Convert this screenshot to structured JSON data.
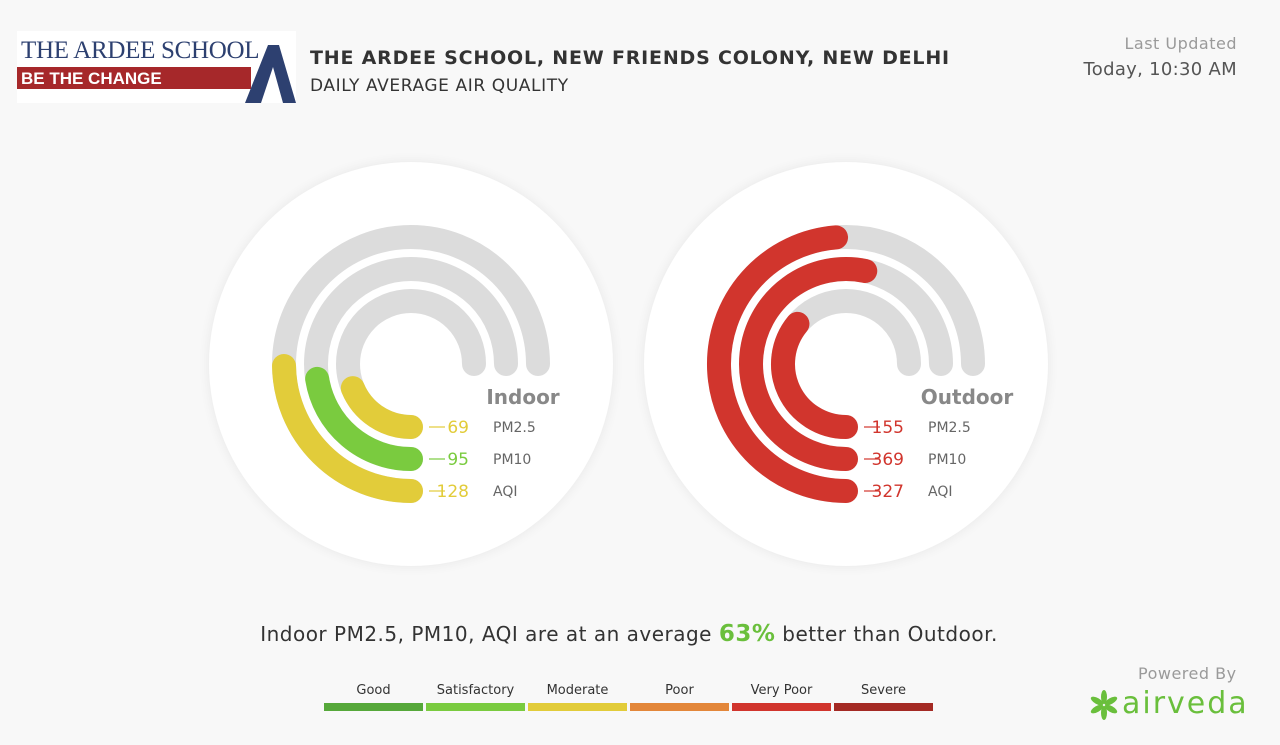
{
  "header": {
    "logo": {
      "name": "THE ARDEE SCHOOL",
      "tagline": "BE THE CHANGE",
      "colors": {
        "navy": "#2d4070",
        "red": "#a6282a"
      }
    },
    "title": "THE ARDEE SCHOOL, NEW FRIENDS COLONY, NEW DELHI",
    "subtitle": "DAILY AVERAGE AIR QUALITY",
    "last_updated_label": "Last Updated",
    "last_updated_value": "Today, 10:30 AM"
  },
  "gauges": [
    {
      "label": "Indoor",
      "rings": [
        {
          "metric": "PM2.5",
          "value": "69",
          "fill": 0.25,
          "color": "#e2cc3a"
        },
        {
          "metric": "PM10",
          "value": "95",
          "fill": 0.3,
          "color": "#7acb3f"
        },
        {
          "metric": "AQI",
          "value": "128",
          "fill": 0.33,
          "color": "#e2cc3a"
        }
      ]
    },
    {
      "label": "Outdoor",
      "rings": [
        {
          "metric": "PM2.5",
          "value": "155",
          "fill": 0.48,
          "color": "#d1352d"
        },
        {
          "metric": "PM10",
          "value": "369",
          "fill": 0.71,
          "color": "#d1352d"
        },
        {
          "metric": "AQI",
          "value": "327",
          "fill": 0.65,
          "color": "#d1352d"
        }
      ]
    }
  ],
  "summary": {
    "prefix": "Indoor PM2.5, PM10, AQI are at an average",
    "percentage": "63%",
    "suffix": "better than Outdoor."
  },
  "legend": [
    {
      "label": "Good",
      "color": "#56a83a"
    },
    {
      "label": "Satisfactory",
      "color": "#7acb3f"
    },
    {
      "label": "Moderate",
      "color": "#e2cc3a"
    },
    {
      "label": "Poor",
      "color": "#e3873a"
    },
    {
      "label": "Very Poor",
      "color": "#d1352d"
    },
    {
      "label": "Severe",
      "color": "#a42a24"
    }
  ],
  "footer": {
    "powered_by": "Powered By",
    "brand": "airveda",
    "brand_icon": "pinwheel-icon",
    "brand_color": "#6abf3c"
  },
  "colors": {
    "track": "#dcdcdc",
    "label_text": "#888888",
    "body_text": "#333333"
  }
}
